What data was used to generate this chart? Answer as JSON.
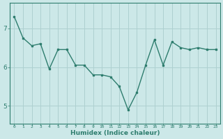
{
  "x": [
    0,
    1,
    2,
    3,
    4,
    5,
    6,
    7,
    8,
    9,
    10,
    11,
    12,
    13,
    14,
    15,
    16,
    17,
    18,
    19,
    20,
    21,
    22,
    23
  ],
  "y": [
    7.3,
    6.75,
    6.55,
    6.6,
    5.95,
    6.45,
    6.45,
    6.05,
    6.05,
    5.8,
    5.8,
    5.75,
    5.5,
    4.9,
    5.35,
    6.05,
    6.7,
    6.05,
    6.65,
    6.5,
    6.45,
    6.5,
    6.45,
    6.45
  ],
  "line_color": "#2e7d6e",
  "bg_color": "#cce8e8",
  "grid_color": "#aed0d0",
  "xlabel": "Humidex (Indice chaleur)",
  "yticks": [
    5,
    6,
    7
  ],
  "xlim": [
    -0.5,
    23.5
  ],
  "ylim": [
    4.55,
    7.65
  ],
  "title": ""
}
